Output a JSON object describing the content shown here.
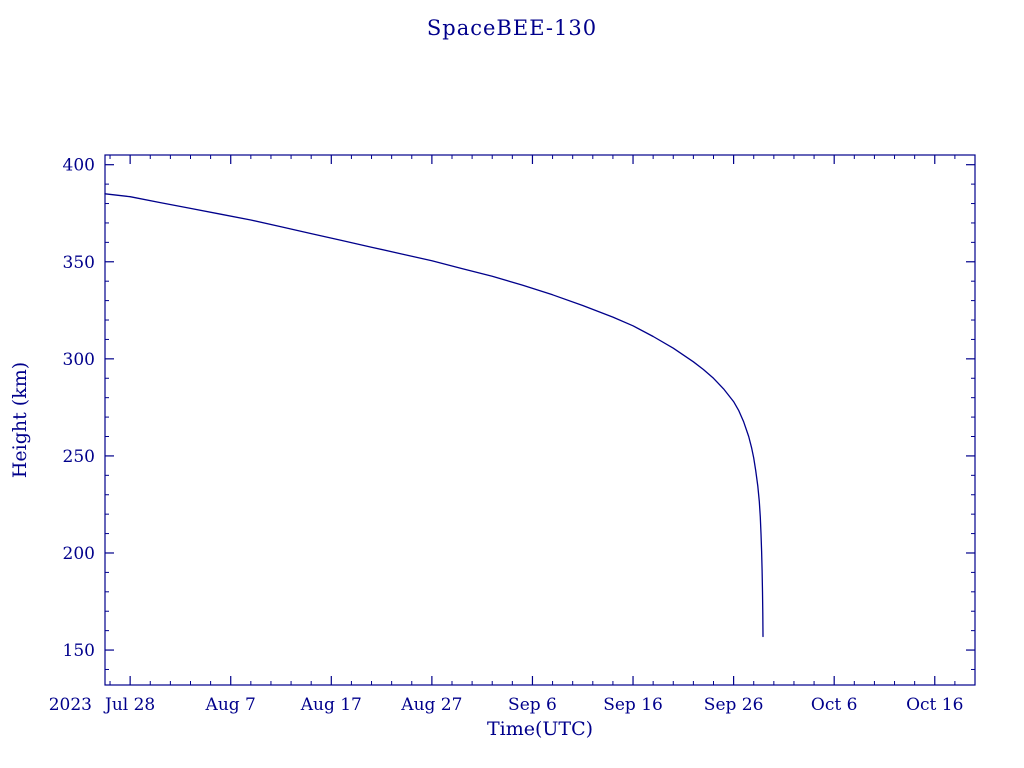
{
  "chart_data": {
    "type": "line",
    "title": "SpaceBEE-130",
    "xlabel": "Time(UTC)",
    "ylabel": "Height (km)",
    "x_year": "2023",
    "x_unit": "days since 2023 Jul 28",
    "x_ticks": [
      {
        "day": 0,
        "label": "Jul 28"
      },
      {
        "day": 10,
        "label": "Aug 7"
      },
      {
        "day": 20,
        "label": "Aug 17"
      },
      {
        "day": 30,
        "label": "Aug 27"
      },
      {
        "day": 40,
        "label": "Sep 6"
      },
      {
        "day": 50,
        "label": "Sep 16"
      },
      {
        "day": 60,
        "label": "Sep 26"
      },
      {
        "day": 70,
        "label": "Oct 6"
      },
      {
        "day": 80,
        "label": "Oct 16"
      }
    ],
    "xlim_days": [
      -2.5,
      84
    ],
    "y_ticks": [
      150,
      200,
      250,
      300,
      350,
      400
    ],
    "ylim": [
      132,
      405
    ],
    "grid": false,
    "legend": false,
    "axis_color": "#00008b",
    "line_color": "#00008b",
    "background_color": "#ffffff",
    "series": [
      {
        "name": "SpaceBEE-130 orbital height",
        "points": [
          [
            -2.5,
            385
          ],
          [
            0,
            383.5
          ],
          [
            3,
            380.5
          ],
          [
            6,
            377.5
          ],
          [
            9,
            374.5
          ],
          [
            12,
            371.5
          ],
          [
            15,
            368
          ],
          [
            18,
            364.5
          ],
          [
            21,
            361
          ],
          [
            24,
            357.5
          ],
          [
            27,
            354
          ],
          [
            30,
            350.5
          ],
          [
            33,
            346.5
          ],
          [
            36,
            342.5
          ],
          [
            39,
            338
          ],
          [
            42,
            333
          ],
          [
            45,
            327.5
          ],
          [
            48,
            321.5
          ],
          [
            50,
            317
          ],
          [
            52,
            311.5
          ],
          [
            54,
            305.5
          ],
          [
            56,
            298.5
          ],
          [
            57,
            294.5
          ],
          [
            58,
            290
          ],
          [
            59,
            284.5
          ],
          [
            60,
            278
          ],
          [
            60.5,
            273.5
          ],
          [
            61,
            267.5
          ],
          [
            61.5,
            260
          ],
          [
            61.8,
            254
          ],
          [
            62.0,
            249
          ],
          [
            62.2,
            242.5
          ],
          [
            62.4,
            234.5
          ],
          [
            62.55,
            226.5
          ],
          [
            62.65,
            218.5
          ],
          [
            62.72,
            210
          ],
          [
            62.78,
            201
          ],
          [
            62.83,
            191
          ],
          [
            62.87,
            180
          ],
          [
            62.9,
            169
          ],
          [
            62.92,
            157
          ]
        ]
      }
    ]
  }
}
